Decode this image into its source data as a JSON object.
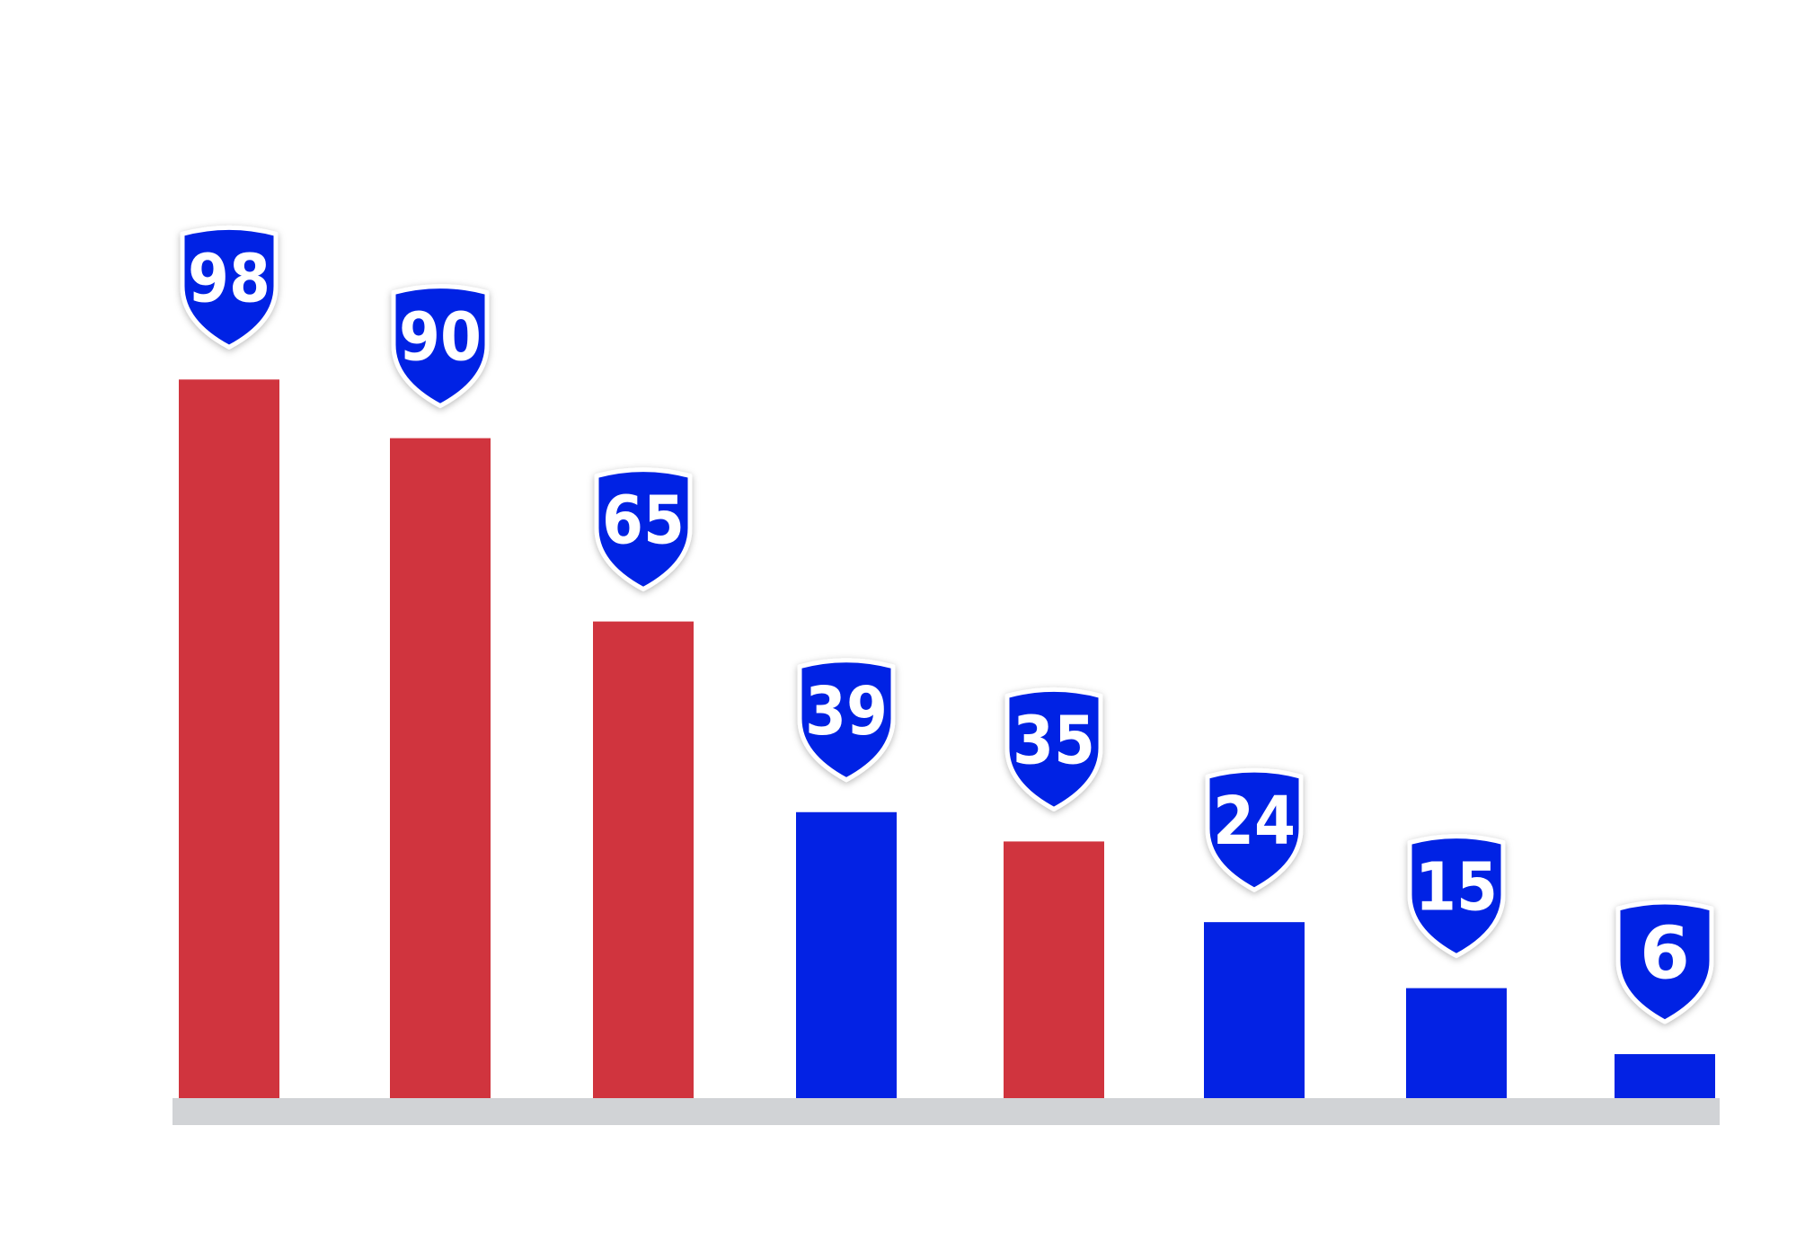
{
  "chart_data": {
    "type": "bar",
    "title": "",
    "xlabel": "",
    "ylabel": "",
    "ylim": [
      0,
      100
    ],
    "grid": false,
    "legend": "none",
    "values": [
      98,
      90,
      65,
      39,
      35,
      24,
      15,
      6
    ],
    "value_labels": [
      "98",
      "90",
      "65",
      "39",
      "35",
      "24",
      "15",
      "6"
    ],
    "bar_colors": [
      "#d0343e",
      "#d0343e",
      "#d0343e",
      "#0322e4",
      "#d0343e",
      "#0322e4",
      "#0322e4",
      "#0322e4"
    ],
    "label_badge": "shield",
    "label_badge_color": "#0322e4",
    "baseline_color": "#d1d3d6"
  }
}
